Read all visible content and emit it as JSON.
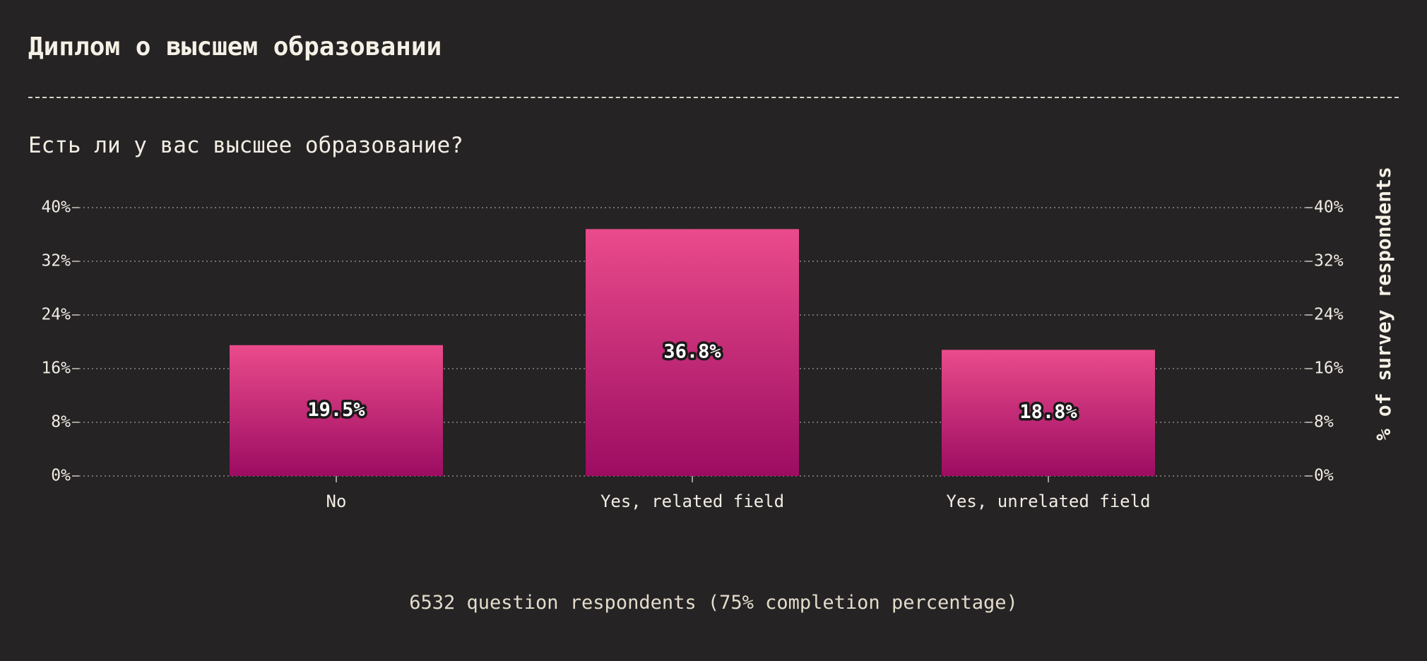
{
  "header": {
    "title": "Диплом о высшем образовании"
  },
  "question": "Есть ли у вас высшее образование?",
  "footnote": "6532 question respondents (75% completion percentage)",
  "colors": {
    "background": "#252324",
    "bar_top": "#ea4b8b",
    "bar_bottom": "#9c0c62",
    "text": "#f3eee4"
  },
  "chart_data": {
    "type": "bar",
    "categories": [
      "No",
      "Yes, related field",
      "Yes, unrelated field"
    ],
    "values": [
      19.5,
      36.8,
      18.8
    ],
    "value_labels": [
      "19.5%",
      "36.8%",
      "18.8%"
    ],
    "ylabel": "% of survey respondents",
    "ylim": [
      0,
      40
    ],
    "yticks": [
      0,
      8,
      16,
      24,
      32,
      40
    ],
    "ytick_labels": [
      "0%",
      "8%",
      "16%",
      "24%",
      "32%",
      "40%"
    ],
    "grid": true,
    "grid_style": "dotted",
    "y_axis_sides": "left and right"
  }
}
